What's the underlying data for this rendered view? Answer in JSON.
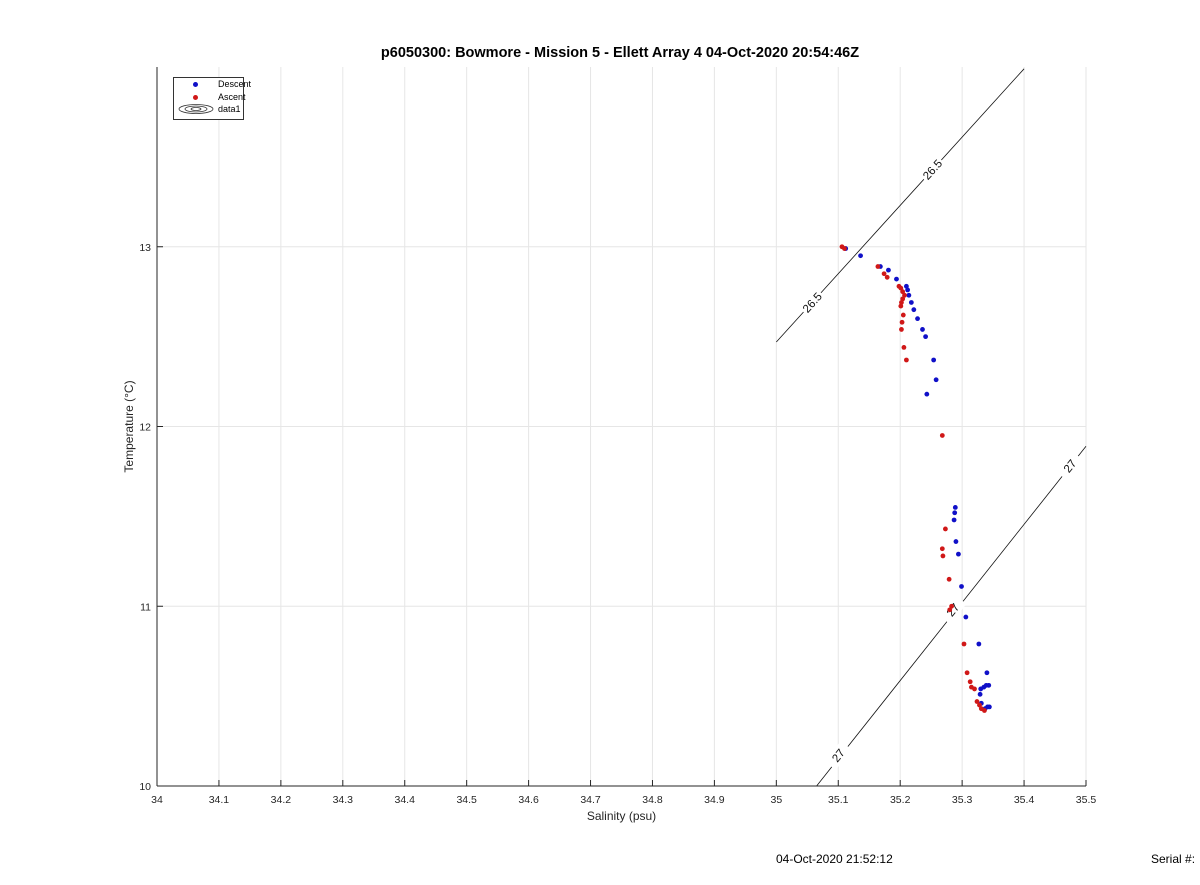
{
  "title": "p6050300: Bowmore - Mission 5 - Ellett Array 4 04-Oct-2020 20:54:46Z",
  "footer": {
    "date": "04-Oct-2020 21:52:12",
    "serial": "Serial #:"
  },
  "legend": {
    "descent": "Descent",
    "ascent": "Ascent",
    "contour": "data1"
  },
  "colors": {
    "descent": "#1010c8",
    "ascent": "#d01818",
    "grid": "#e6e6e6",
    "axis": "#262626"
  },
  "chart_data": {
    "type": "scatter",
    "xlabel": "Salinity (psu)",
    "ylabel": "Temperature (°C)",
    "xlim": [
      34,
      35.5
    ],
    "ylim": [
      10,
      14
    ],
    "xticks": [
      "34",
      "34.1",
      "34.2",
      "34.3",
      "34.4",
      "34.5",
      "34.6",
      "34.7",
      "34.8",
      "34.9",
      "35",
      "35.1",
      "35.2",
      "35.3",
      "35.4",
      "35.5"
    ],
    "yticks": [
      "10",
      "11",
      "12",
      "13"
    ],
    "grid": true,
    "legend_position": "top-left",
    "series": [
      {
        "name": "Descent",
        "points": [
          [
            35.112,
            12.99
          ],
          [
            35.136,
            12.95
          ],
          [
            35.168,
            12.89
          ],
          [
            35.181,
            12.87
          ],
          [
            35.194,
            12.82
          ],
          [
            35.21,
            12.78
          ],
          [
            35.212,
            12.76
          ],
          [
            35.214,
            12.73
          ],
          [
            35.218,
            12.69
          ],
          [
            35.222,
            12.65
          ],
          [
            35.228,
            12.6
          ],
          [
            35.236,
            12.54
          ],
          [
            35.241,
            12.5
          ],
          [
            35.254,
            12.37
          ],
          [
            35.258,
            12.26
          ],
          [
            35.243,
            12.18
          ],
          [
            35.289,
            11.55
          ],
          [
            35.288,
            11.52
          ],
          [
            35.287,
            11.48
          ],
          [
            35.29,
            11.36
          ],
          [
            35.294,
            11.29
          ],
          [
            35.299,
            11.11
          ],
          [
            35.306,
            10.94
          ],
          [
            35.327,
            10.79
          ],
          [
            35.34,
            10.63
          ],
          [
            35.343,
            10.56
          ],
          [
            35.339,
            10.56
          ],
          [
            35.335,
            10.55
          ],
          [
            35.33,
            10.54
          ],
          [
            35.329,
            10.51
          ],
          [
            35.331,
            10.46
          ],
          [
            35.341,
            10.44
          ],
          [
            35.344,
            10.44
          ],
          [
            35.337,
            10.43
          ]
        ]
      },
      {
        "name": "Ascent",
        "points": [
          [
            35.106,
            13.0
          ],
          [
            35.11,
            12.99
          ],
          [
            35.164,
            12.89
          ],
          [
            35.174,
            12.85
          ],
          [
            35.179,
            12.83
          ],
          [
            35.198,
            12.78
          ],
          [
            35.201,
            12.77
          ],
          [
            35.204,
            12.75
          ],
          [
            35.207,
            12.73
          ],
          [
            35.204,
            12.71
          ],
          [
            35.202,
            12.69
          ],
          [
            35.201,
            12.67
          ],
          [
            35.205,
            12.62
          ],
          [
            35.203,
            12.58
          ],
          [
            35.202,
            12.54
          ],
          [
            35.206,
            12.44
          ],
          [
            35.21,
            12.37
          ],
          [
            35.268,
            11.95
          ],
          [
            35.273,
            11.43
          ],
          [
            35.268,
            11.32
          ],
          [
            35.269,
            11.28
          ],
          [
            35.279,
            11.15
          ],
          [
            35.283,
            11.0
          ],
          [
            35.28,
            10.98
          ],
          [
            35.303,
            10.79
          ],
          [
            35.308,
            10.63
          ],
          [
            35.313,
            10.58
          ],
          [
            35.315,
            10.55
          ],
          [
            35.32,
            10.54
          ],
          [
            35.324,
            10.47
          ],
          [
            35.328,
            10.45
          ],
          [
            35.331,
            10.43
          ],
          [
            35.336,
            10.42
          ]
        ]
      }
    ],
    "contours": [
      {
        "level": "26.5",
        "points": [
          [
            35.0,
            12.47
          ],
          [
            35.4,
            13.99
          ]
        ],
        "labels": [
          [
            35.058,
            12.69
          ],
          [
            35.252,
            13.43
          ]
        ]
      },
      {
        "level": "27",
        "points": [
          [
            35.065,
            10.0
          ],
          [
            35.5,
            11.89
          ]
        ],
        "labels": [
          [
            35.1,
            10.17
          ],
          [
            35.285,
            10.98
          ],
          [
            35.474,
            11.78
          ]
        ]
      }
    ]
  }
}
